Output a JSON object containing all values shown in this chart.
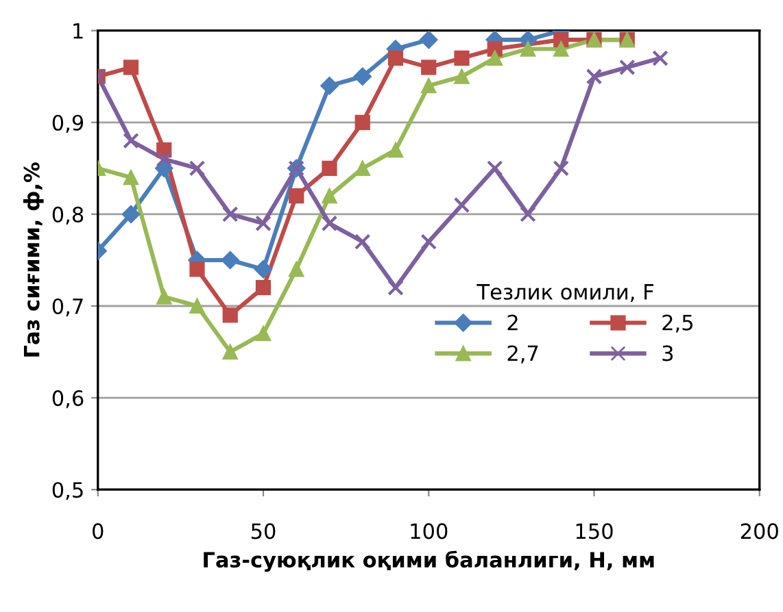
{
  "chart_data": {
    "type": "line",
    "xlabel": "Газ-суюқлик оқими баланлиги, Н, мм",
    "ylabel": "Газ сиғими, ф,%",
    "legend_title": "Тезлик омили, F",
    "xlim": [
      0,
      200
    ],
    "xticks": [
      0,
      50,
      100,
      150,
      200
    ],
    "ylim": [
      0.5,
      1
    ],
    "yticks": [
      {
        "value": 0.5,
        "label": "0,5"
      },
      {
        "value": 0.6,
        "label": "0,6"
      },
      {
        "value": 0.7,
        "label": "0,7"
      },
      {
        "value": 0.8,
        "label": "0,8"
      },
      {
        "value": 0.9,
        "label": "0,9"
      },
      {
        "value": 1,
        "label": "1"
      }
    ],
    "grid": "y",
    "legend": "right",
    "series": [
      {
        "name": "2",
        "color": "#4a7ebb",
        "marker": "diamond",
        "x": [
          0,
          10,
          20,
          30,
          40,
          50,
          60,
          70,
          80,
          90,
          100,
          110,
          120,
          130,
          140
        ],
        "values": [
          0.76,
          0.8,
          0.85,
          0.75,
          0.75,
          0.74,
          0.85,
          0.94,
          0.95,
          0.98,
          0.99,
          null,
          0.99,
          0.99,
          1.0
        ]
      },
      {
        "name": "2,5",
        "color": "#be4b48",
        "marker": "square",
        "x": [
          0,
          10,
          20,
          30,
          40,
          50,
          60,
          70,
          80,
          90,
          100,
          110,
          120,
          140,
          150,
          160
        ],
        "values": [
          0.95,
          0.96,
          0.87,
          0.74,
          0.69,
          0.72,
          0.82,
          0.85,
          0.9,
          0.97,
          0.96,
          0.97,
          0.98,
          0.99,
          0.99,
          0.99
        ]
      },
      {
        "name": "2,7",
        "color": "#98b954",
        "marker": "triangle",
        "x": [
          0,
          10,
          20,
          30,
          40,
          50,
          60,
          70,
          80,
          90,
          100,
          110,
          120,
          130,
          140,
          150,
          160
        ],
        "values": [
          0.85,
          0.84,
          0.71,
          0.7,
          0.65,
          0.67,
          0.74,
          0.82,
          0.85,
          0.87,
          0.94,
          0.95,
          0.97,
          0.98,
          0.98,
          0.99,
          0.99
        ]
      },
      {
        "name": "3",
        "color": "#7d60a0",
        "marker": "cross",
        "x": [
          0,
          10,
          20,
          30,
          40,
          50,
          60,
          70,
          80,
          90,
          100,
          110,
          120,
          130,
          140,
          150,
          160,
          170
        ],
        "values": [
          0.95,
          0.88,
          0.86,
          0.85,
          0.8,
          0.79,
          0.85,
          0.79,
          0.77,
          0.72,
          0.77,
          0.81,
          0.85,
          0.8,
          0.85,
          0.95,
          0.96,
          0.97
        ]
      }
    ]
  }
}
